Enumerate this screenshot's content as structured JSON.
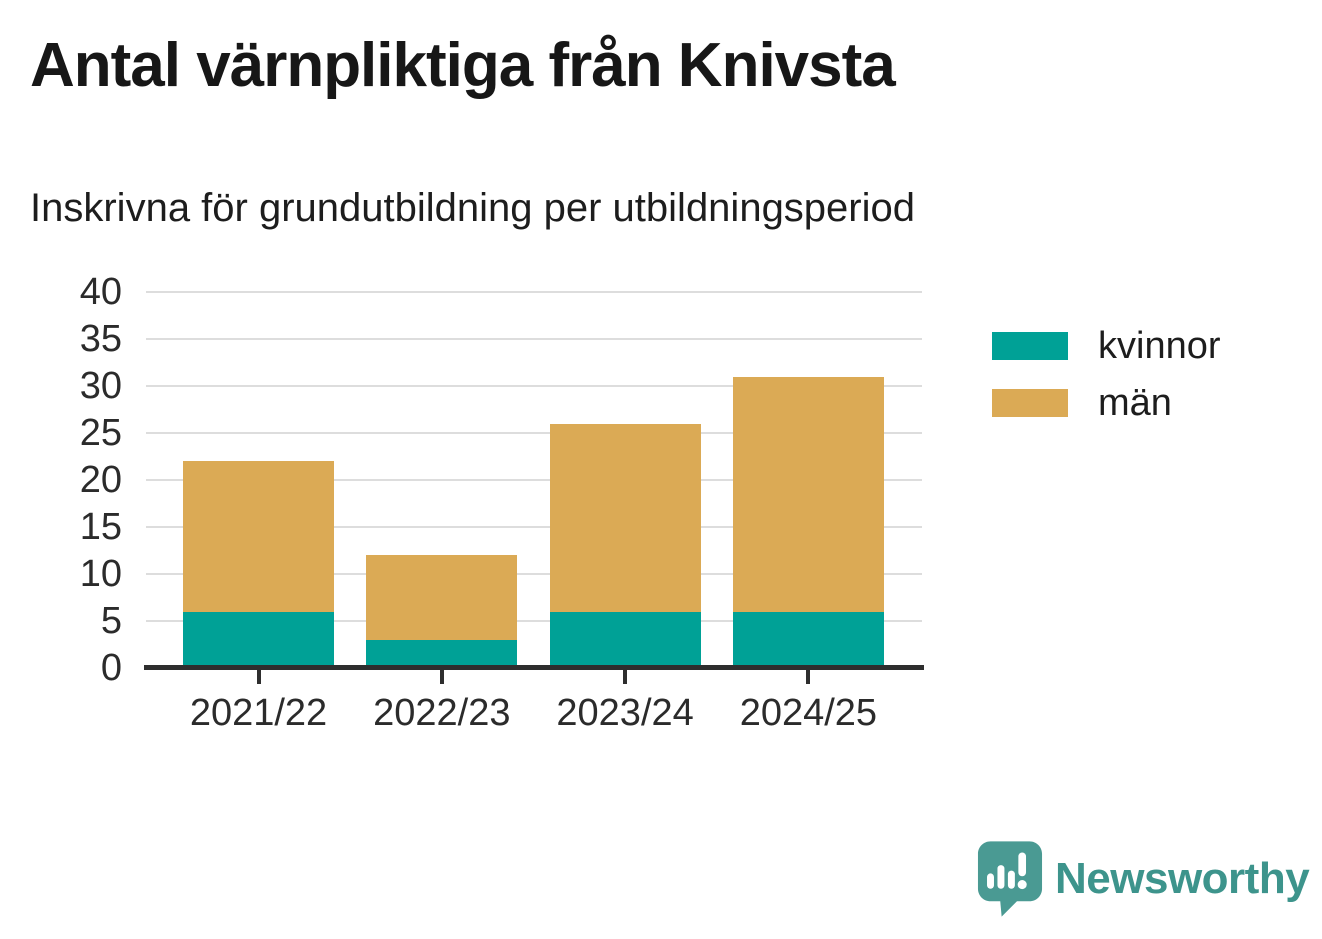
{
  "title": "Antal värnpliktiga från Knivsta",
  "subtitle": "Inskrivna för grundutbildning per utbildningsperiod",
  "chart_data": {
    "type": "bar",
    "stacked": true,
    "title": "Antal värnpliktiga från Knivsta",
    "subtitle": "Inskrivna för grundutbildning per utbildningsperiod",
    "categories": [
      "2021/22",
      "2022/23",
      "2023/24",
      "2024/25"
    ],
    "series": [
      {
        "name": "kvinnor",
        "color": "#00A196",
        "values": [
          6,
          3,
          6,
          6
        ]
      },
      {
        "name": "män",
        "color": "#DBAA55",
        "values": [
          16,
          9,
          20,
          25
        ]
      }
    ],
    "stack_totals": [
      22,
      12,
      26,
      31
    ],
    "xlabel": "",
    "ylabel": "",
    "ylim": [
      0,
      40
    ],
    "yticks": [
      0,
      5,
      10,
      15,
      20,
      25,
      30,
      35,
      40
    ],
    "grid": true,
    "legend_position": "right"
  },
  "legend": {
    "items": [
      {
        "label": "kvinnor",
        "color": "#00A196"
      },
      {
        "label": "män",
        "color": "#DBAA55"
      }
    ]
  },
  "colors": {
    "grid": "#dddddd",
    "axis": "#2e2e2e",
    "logo": "#3d948c"
  },
  "logo": {
    "text": "Newsworthy",
    "icon": "speech-bubble-bar-chart-icon"
  }
}
